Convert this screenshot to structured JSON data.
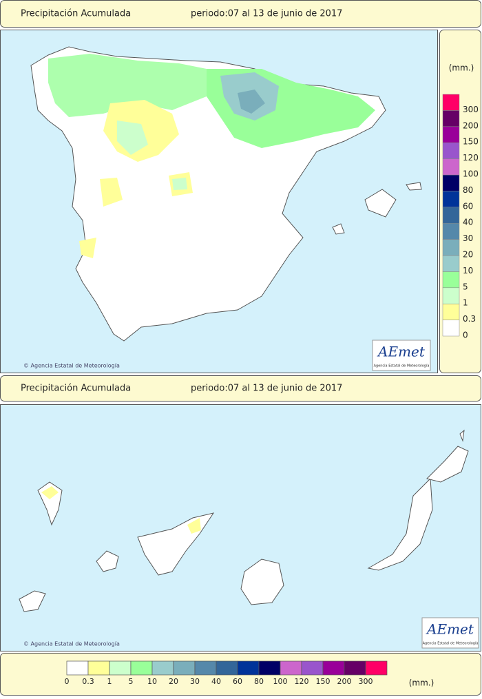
{
  "headers": [
    {
      "title": "Precipitación Acumulada",
      "period": "periodo:07 al 13 de junio de 2017"
    },
    {
      "title": "Precipitación Acumulada",
      "period": "periodo:07 al 13 de junio de 2017"
    }
  ],
  "maps": [
    {
      "credit": "© Agencia Estatal de Meteorología",
      "logo": "AEmet",
      "logo_caption": "Agencia Estatal de Meteorología"
    },
    {
      "credit": "© Agencia Estatal de Meteorología",
      "logo": "AEmet",
      "logo_caption": "Agencia Estatal de Meteorología"
    }
  ],
  "legend": {
    "unit": "(mm.)",
    "levels": [
      {
        "label": "0",
        "color": "#ffffff"
      },
      {
        "label": "0.3",
        "color": "#ffff99"
      },
      {
        "label": "1",
        "color": "#ccffcc"
      },
      {
        "label": "5",
        "color": "#99ff99"
      },
      {
        "label": "10",
        "color": "#99cccc"
      },
      {
        "label": "20",
        "color": "#7aaebb"
      },
      {
        "label": "30",
        "color": "#5588aa"
      },
      {
        "label": "40",
        "color": "#336699"
      },
      {
        "label": "60",
        "color": "#003399"
      },
      {
        "label": "80",
        "color": "#000066"
      },
      {
        "label": "100",
        "color": "#cc66cc"
      },
      {
        "label": "120",
        "color": "#9955cc"
      },
      {
        "label": "150",
        "color": "#990099"
      },
      {
        "label": "200",
        "color": "#660066"
      },
      {
        "label": "300",
        "color": "#ff0066"
      }
    ]
  }
}
